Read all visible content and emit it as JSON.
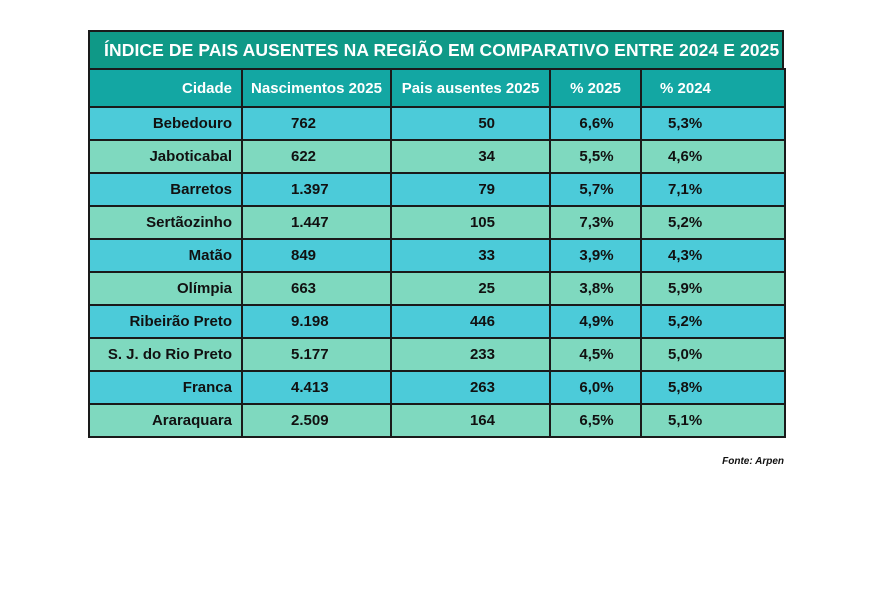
{
  "title": "ÍNDICE DE PAIS AUSENTES NA REGIÃO EM COMPARATIVO ENTRE 2024 E 2025",
  "headers": [
    "Cidade",
    "Nascimentos 2025",
    "Pais ausentes 2025",
    "% 2025",
    "% 2024"
  ],
  "rows": [
    {
      "cidade": "Bebedouro",
      "nascimentos": "762",
      "pais": "50",
      "p2025": "6,6%",
      "p2024": "5,3%"
    },
    {
      "cidade": "Jaboticabal",
      "nascimentos": "622",
      "pais": "34",
      "p2025": "5,5%",
      "p2024": "4,6%"
    },
    {
      "cidade": "Barretos",
      "nascimentos": "1.397",
      "pais": "79",
      "p2025": "5,7%",
      "p2024": "7,1%"
    },
    {
      "cidade": "Sertãozinho",
      "nascimentos": "1.447",
      "pais": "105",
      "p2025": "7,3%",
      "p2024": "5,2%"
    },
    {
      "cidade": "Matão",
      "nascimentos": "849",
      "pais": "33",
      "p2025": "3,9%",
      "p2024": "4,3%"
    },
    {
      "cidade": "Olímpia",
      "nascimentos": "663",
      "pais": "25",
      "p2025": "3,8%",
      "p2024": "5,9%"
    },
    {
      "cidade": "Ribeirão Preto",
      "nascimentos": "9.198",
      "pais": "446",
      "p2025": "4,9%",
      "p2024": "5,2%"
    },
    {
      "cidade": "S. J. do Rio Preto",
      "nascimentos": "5.177",
      "pais": "233",
      "p2025": "4,5%",
      "p2024": "5,0%"
    },
    {
      "cidade": "Franca",
      "nascimentos": "4.413",
      "pais": "263",
      "p2025": "6,0%",
      "p2024": "5,8%"
    },
    {
      "cidade": "Araraquara",
      "nascimentos": "2.509",
      "pais": "164",
      "p2025": "6,5%",
      "p2024": "5,1%"
    }
  ],
  "source": "Fonte: Arpen",
  "colors": {
    "title_bg": "#0f9987",
    "header_bg": "#13a7a3",
    "row_odd": "#4ccbd9",
    "row_even": "#7fd9bf"
  }
}
